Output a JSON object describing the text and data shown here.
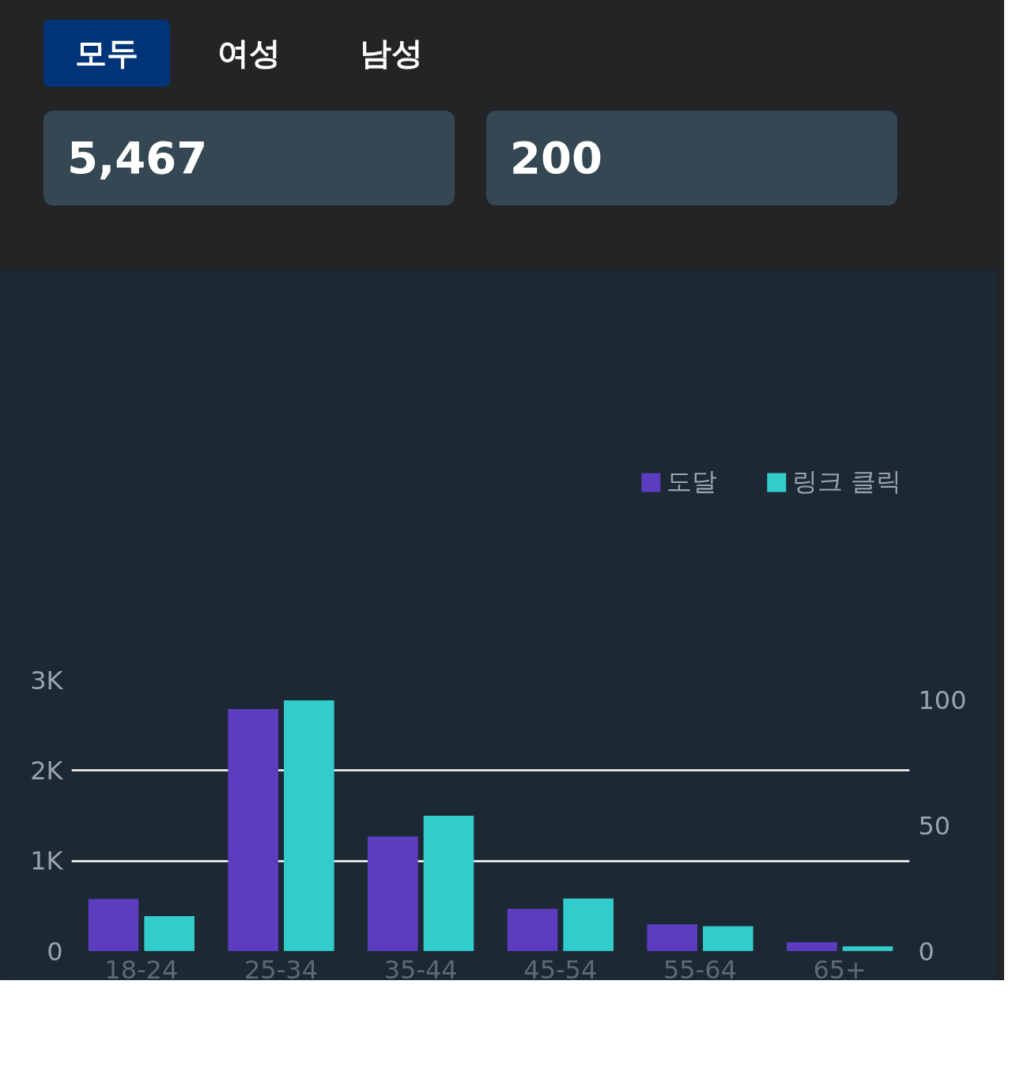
{
  "chart_data": {
    "type": "bar",
    "categories": [
      "18-24",
      "25-34",
      "35-44",
      "45-54",
      "55-64",
      "65+"
    ],
    "series": [
      {
        "name": "도달",
        "color": "#5c3dbf",
        "values": [
          580,
          2680,
          1270,
          470,
          300,
          100
        ]
      },
      {
        "name": "링크 클릭",
        "color": "#33cccc",
        "values": [
          14,
          100,
          54,
          21,
          10,
          2
        ],
        "axis": "y2"
      }
    ],
    "ylim": [
      0,
      3000
    ],
    "yticks": [
      0,
      {
        "value": 1000,
        "label": "1K"
      },
      {
        "value": 2000,
        "label": "2K"
      },
      {
        "value": 3000,
        "label": "3K"
      }
    ],
    "y2lim": [
      0,
      108
    ],
    "y2ticks": [
      0,
      50,
      100
    ],
    "grid": "y",
    "legend": "top",
    "annotations": [
      "모두",
      "여성",
      "남성",
      "5,467",
      "200"
    ]
  }
}
